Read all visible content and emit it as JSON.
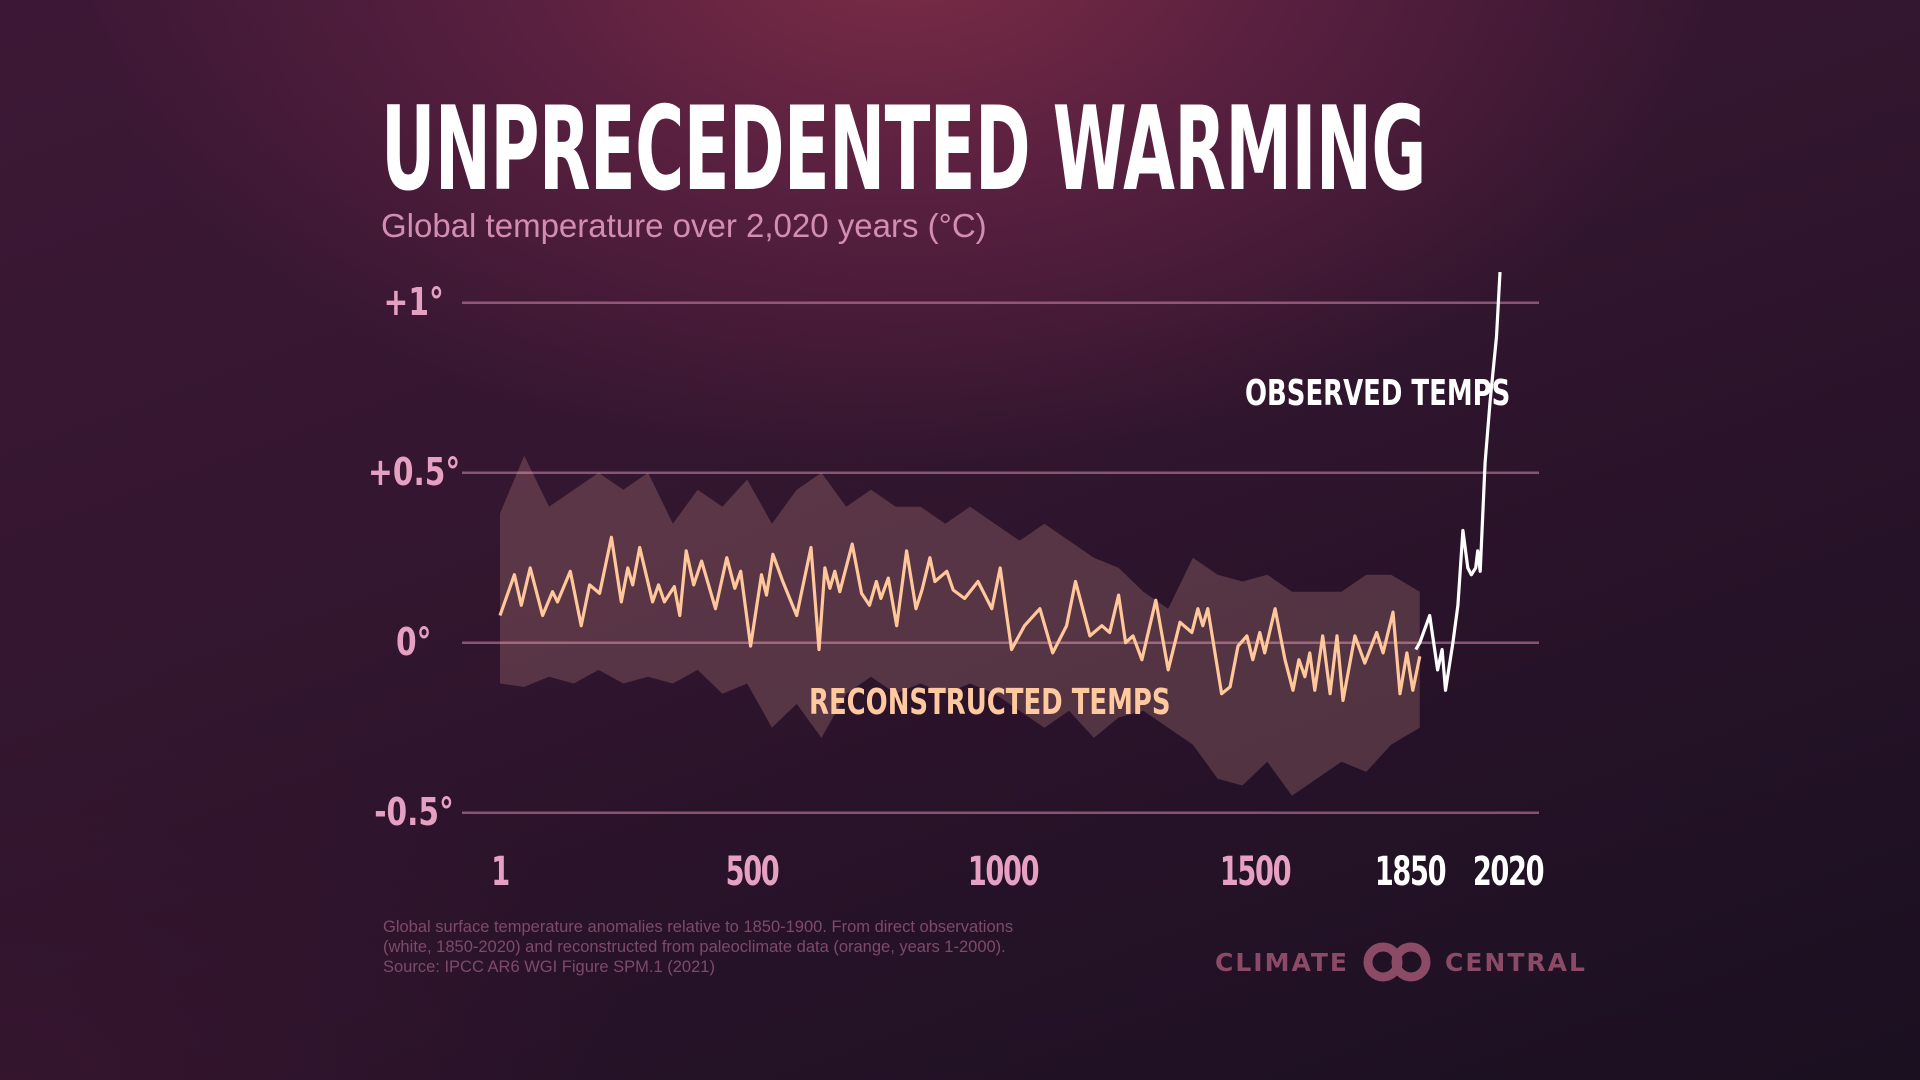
{
  "title": "UNPRECEDENTED WARMING",
  "subtitle": "Global temperature over 2,020 years (°C)",
  "footnote": {
    "line1": "Global surface temperature anomalies relative to 1850-1900. From direct observations",
    "line2": "(white, 1850-2020) and reconstructed from paleoclimate data (orange, years 1-2000).",
    "line3": "Source: IPCC AR6 WGI Figure SPM.1 (2021)"
  },
  "logo": {
    "left": "CLIMATE",
    "right": "CENTRAL"
  },
  "colors": {
    "reconstructed": "#ffc79a",
    "observed": "#ffffff",
    "band": "#ffb8aa",
    "grid": "#c77fa3",
    "axis_labels": "#e6a1c2"
  },
  "chart_data": {
    "type": "line",
    "title": "UNPRECEDENTED WARMING",
    "subtitle": "Global temperature over 2,020 years (°C)",
    "xlim": [
      1,
      2020
    ],
    "ylim": [
      -0.5,
      1
    ],
    "grid": true,
    "y_ticks": [
      {
        "value": 1,
        "label": "+1°"
      },
      {
        "value": 0.5,
        "label": "+0.5°"
      },
      {
        "value": 0,
        "label": "0°"
      },
      {
        "value": -0.5,
        "label": "-0.5°"
      }
    ],
    "x_ticks": [
      {
        "value": 1,
        "label": "1"
      },
      {
        "value": 500,
        "label": "500"
      },
      {
        "value": 1000,
        "label": "1000"
      },
      {
        "value": 1500,
        "label": "1500"
      },
      {
        "value": 1850,
        "label": "1850"
      },
      {
        "value": 2020,
        "label": "2020"
      }
    ],
    "series": [
      {
        "name": "RECONSTRUCTED TEMPS",
        "points": [
          [
            1,
            0.08
          ],
          [
            30,
            0.2
          ],
          [
            44,
            0.11
          ],
          [
            62,
            0.22
          ],
          [
            87,
            0.08
          ],
          [
            107,
            0.15
          ],
          [
            117,
            0.12
          ],
          [
            143,
            0.21
          ],
          [
            165,
            0.05
          ],
          [
            182,
            0.17
          ],
          [
            202,
            0.145
          ],
          [
            226,
            0.31
          ],
          [
            246,
            0.12
          ],
          [
            259,
            0.22
          ],
          [
            269,
            0.17
          ],
          [
            283,
            0.28
          ],
          [
            309,
            0.12
          ],
          [
            321,
            0.17
          ],
          [
            333,
            0.12
          ],
          [
            353,
            0.165
          ],
          [
            364,
            0.08
          ],
          [
            377,
            0.27
          ],
          [
            392,
            0.17
          ],
          [
            408,
            0.24
          ],
          [
            436,
            0.1
          ],
          [
            459,
            0.25
          ],
          [
            475,
            0.16
          ],
          [
            487,
            0.21
          ],
          [
            507,
            -0.01
          ],
          [
            529,
            0.2
          ],
          [
            539,
            0.14
          ],
          [
            552,
            0.26
          ],
          [
            572,
            0.18
          ],
          [
            600,
            0.08
          ],
          [
            613,
            0.17
          ],
          [
            629,
            0.28
          ],
          [
            645,
            -0.02
          ],
          [
            657,
            0.22
          ],
          [
            667,
            0.16
          ],
          [
            677,
            0.21
          ],
          [
            687,
            0.15
          ],
          [
            712,
            0.29
          ],
          [
            731,
            0.145
          ],
          [
            747,
            0.11
          ],
          [
            761,
            0.18
          ],
          [
            770,
            0.13
          ],
          [
            785,
            0.19
          ],
          [
            802,
            0.05
          ],
          [
            822,
            0.27
          ],
          [
            841,
            0.1
          ],
          [
            853,
            0.155
          ],
          [
            869,
            0.25
          ],
          [
            879,
            0.18
          ],
          [
            903,
            0.21
          ],
          [
            916,
            0.155
          ],
          [
            939,
            0.13
          ],
          [
            966,
            0.18
          ],
          [
            994,
            0.1
          ],
          [
            1011,
            0.22
          ],
          [
            1024,
            0.08
          ],
          [
            1034,
            -0.02
          ],
          [
            1060,
            0.05
          ],
          [
            1091,
            0.1
          ],
          [
            1117,
            -0.03
          ],
          [
            1145,
            0.05
          ],
          [
            1163,
            0.18
          ],
          [
            1192,
            0.02
          ],
          [
            1216,
            0.05
          ],
          [
            1232,
            0.03
          ],
          [
            1250,
            0.14
          ],
          [
            1264,
            0.0
          ],
          [
            1279,
            0.02
          ],
          [
            1297,
            -0.05
          ],
          [
            1325,
            0.125
          ],
          [
            1350,
            -0.08
          ],
          [
            1374,
            0.06
          ],
          [
            1398,
            0.03
          ],
          [
            1410,
            0.1
          ],
          [
            1420,
            0.05
          ],
          [
            1430,
            0.1
          ],
          [
            1458,
            -0.15
          ],
          [
            1475,
            -0.13
          ],
          [
            1491,
            -0.01
          ],
          [
            1509,
            0.02
          ],
          [
            1521,
            -0.05
          ],
          [
            1535,
            0.03
          ],
          [
            1545,
            -0.03
          ],
          [
            1566,
            0.1
          ],
          [
            1586,
            -0.05
          ],
          [
            1602,
            -0.14
          ],
          [
            1614,
            -0.05
          ],
          [
            1626,
            -0.1
          ],
          [
            1636,
            -0.03
          ],
          [
            1646,
            -0.14
          ],
          [
            1662,
            0.02
          ],
          [
            1677,
            -0.15
          ],
          [
            1691,
            0.02
          ],
          [
            1703,
            -0.17
          ],
          [
            1727,
            0.02
          ],
          [
            1747,
            -0.06
          ],
          [
            1771,
            0.03
          ],
          [
            1784,
            -0.03
          ],
          [
            1804,
            0.09
          ],
          [
            1818,
            -0.15
          ],
          [
            1832,
            -0.03
          ],
          [
            1844,
            -0.14
          ],
          [
            1858,
            -0.04
          ]
        ],
        "band_upper": [
          [
            1,
            0.38
          ],
          [
            50,
            0.55
          ],
          [
            100,
            0.4
          ],
          [
            150,
            0.45
          ],
          [
            200,
            0.5
          ],
          [
            250,
            0.45
          ],
          [
            300,
            0.5
          ],
          [
            350,
            0.35
          ],
          [
            400,
            0.45
          ],
          [
            450,
            0.4
          ],
          [
            500,
            0.48
          ],
          [
            550,
            0.35
          ],
          [
            600,
            0.45
          ],
          [
            650,
            0.5
          ],
          [
            700,
            0.4
          ],
          [
            750,
            0.45
          ],
          [
            800,
            0.4
          ],
          [
            850,
            0.4
          ],
          [
            900,
            0.35
          ],
          [
            950,
            0.4
          ],
          [
            1000,
            0.35
          ],
          [
            1050,
            0.3
          ],
          [
            1100,
            0.35
          ],
          [
            1150,
            0.3
          ],
          [
            1200,
            0.25
          ],
          [
            1250,
            0.22
          ],
          [
            1300,
            0.15
          ],
          [
            1350,
            0.1
          ],
          [
            1400,
            0.25
          ],
          [
            1450,
            0.2
          ],
          [
            1500,
            0.18
          ],
          [
            1550,
            0.2
          ],
          [
            1600,
            0.15
          ],
          [
            1650,
            0.15
          ],
          [
            1700,
            0.15
          ],
          [
            1750,
            0.2
          ],
          [
            1800,
            0.2
          ],
          [
            1858,
            0.15
          ]
        ],
        "band_lower": [
          [
            1,
            -0.12
          ],
          [
            50,
            -0.13
          ],
          [
            100,
            -0.1
          ],
          [
            150,
            -0.12
          ],
          [
            200,
            -0.08
          ],
          [
            250,
            -0.12
          ],
          [
            300,
            -0.1
          ],
          [
            350,
            -0.12
          ],
          [
            400,
            -0.08
          ],
          [
            450,
            -0.15
          ],
          [
            500,
            -0.12
          ],
          [
            550,
            -0.25
          ],
          [
            600,
            -0.18
          ],
          [
            650,
            -0.28
          ],
          [
            700,
            -0.15
          ],
          [
            750,
            -0.1
          ],
          [
            800,
            -0.15
          ],
          [
            850,
            -0.12
          ],
          [
            900,
            -0.15
          ],
          [
            950,
            -0.12
          ],
          [
            1000,
            -0.15
          ],
          [
            1050,
            -0.2
          ],
          [
            1100,
            -0.25
          ],
          [
            1150,
            -0.2
          ],
          [
            1200,
            -0.28
          ],
          [
            1250,
            -0.22
          ],
          [
            1300,
            -0.2
          ],
          [
            1350,
            -0.25
          ],
          [
            1400,
            -0.3
          ],
          [
            1450,
            -0.4
          ],
          [
            1500,
            -0.42
          ],
          [
            1550,
            -0.35
          ],
          [
            1600,
            -0.45
          ],
          [
            1650,
            -0.4
          ],
          [
            1700,
            -0.35
          ],
          [
            1750,
            -0.38
          ],
          [
            1800,
            -0.3
          ],
          [
            1858,
            -0.25
          ]
        ]
      },
      {
        "name": "OBSERVED TEMPS",
        "points": [
          [
            1850,
            -0.02
          ],
          [
            1858,
            0.0
          ],
          [
            1878,
            0.08
          ],
          [
            1894,
            -0.08
          ],
          [
            1903,
            -0.02
          ],
          [
            1910,
            -0.14
          ],
          [
            1925,
            0.0
          ],
          [
            1935,
            0.11
          ],
          [
            1945,
            0.33
          ],
          [
            1955,
            0.22
          ],
          [
            1962,
            0.2
          ],
          [
            1971,
            0.22
          ],
          [
            1975,
            0.27
          ],
          [
            1980,
            0.21
          ],
          [
            1990,
            0.53
          ],
          [
            2000,
            0.71
          ],
          [
            2013,
            0.9
          ],
          [
            2020,
            1.09
          ]
        ]
      }
    ]
  }
}
